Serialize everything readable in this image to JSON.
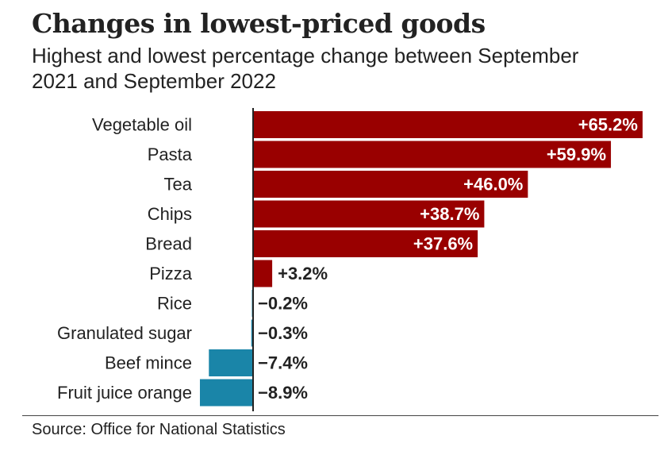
{
  "title": "Changes in lowest-priced goods",
  "subtitle": "Highest and lowest percentage change between September 2021 and September 2022",
  "source": "Source: Office for National Statistics",
  "colors": {
    "positive": "#990000",
    "negative": "#1a85a8",
    "axis": "#222222",
    "text": "#222222",
    "label_inside": "#ffffff"
  },
  "chart_data": {
    "type": "bar",
    "orientation": "horizontal",
    "title": "Changes in lowest-priced goods",
    "subtitle": "Highest and lowest percentage change between September 2021 and September 2022",
    "categories": [
      "Vegetable oil",
      "Pasta",
      "Tea",
      "Chips",
      "Bread",
      "Pizza",
      "Rice",
      "Granulated sugar",
      "Beef mince",
      "Fruit juice orange"
    ],
    "values": [
      65.2,
      59.9,
      46.0,
      38.7,
      37.6,
      3.2,
      -0.2,
      -0.3,
      -7.4,
      -8.9
    ],
    "value_labels": [
      "+65.2%",
      "+59.9%",
      "+46.0%",
      "+38.7%",
      "+37.6%",
      "+3.2%",
      "−0.2%",
      "−0.3%",
      "−7.4%",
      "−8.9%"
    ],
    "unit": "%",
    "xlim": [
      -9,
      66
    ],
    "grid": false,
    "legend": "none"
  }
}
